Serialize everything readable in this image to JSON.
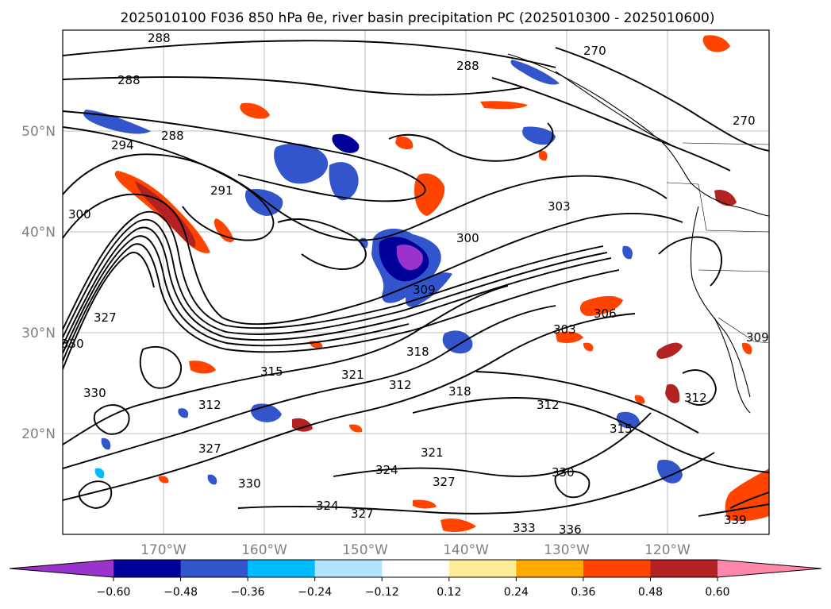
{
  "title": "2025010100 F036 850 hPa θe, river basin precipitation PC (2025010300 - 2025010600)",
  "map": {
    "lat_labels": [
      "50°N",
      "40°N",
      "30°N",
      "20°N"
    ],
    "lon_labels": [
      "170°W",
      "160°W",
      "150°W",
      "140°W",
      "130°W",
      "120°W"
    ],
    "contour_labels": [
      "288",
      "288",
      "288",
      "270",
      "288",
      "270",
      "294",
      "291",
      "300",
      "303",
      "300",
      "330",
      "327",
      "318",
      "315",
      "321",
      "312",
      "318",
      "312",
      "309",
      "306",
      "309",
      "303",
      "312",
      "315",
      "312",
      "330",
      "327",
      "324",
      "321",
      "327",
      "330",
      "324",
      "327",
      "330",
      "336",
      "333",
      "339"
    ]
  },
  "colorbar": {
    "colors": {
      "under": "#9933cc",
      "bins": [
        "#9933cc",
        "#000099",
        "#3355cc",
        "#00bbff",
        "#b2e4ff",
        "#ffffff",
        "#ffee99",
        "#ffaa00",
        "#ff4400",
        "#b22222",
        "#ff88aa"
      ],
      "over": "#ff88aa"
    },
    "tick_labels": [
      "−0.60",
      "−0.48",
      "−0.36",
      "−0.24",
      "−0.12",
      "0.12",
      "0.24",
      "0.36",
      "0.48",
      "0.60"
    ]
  }
}
